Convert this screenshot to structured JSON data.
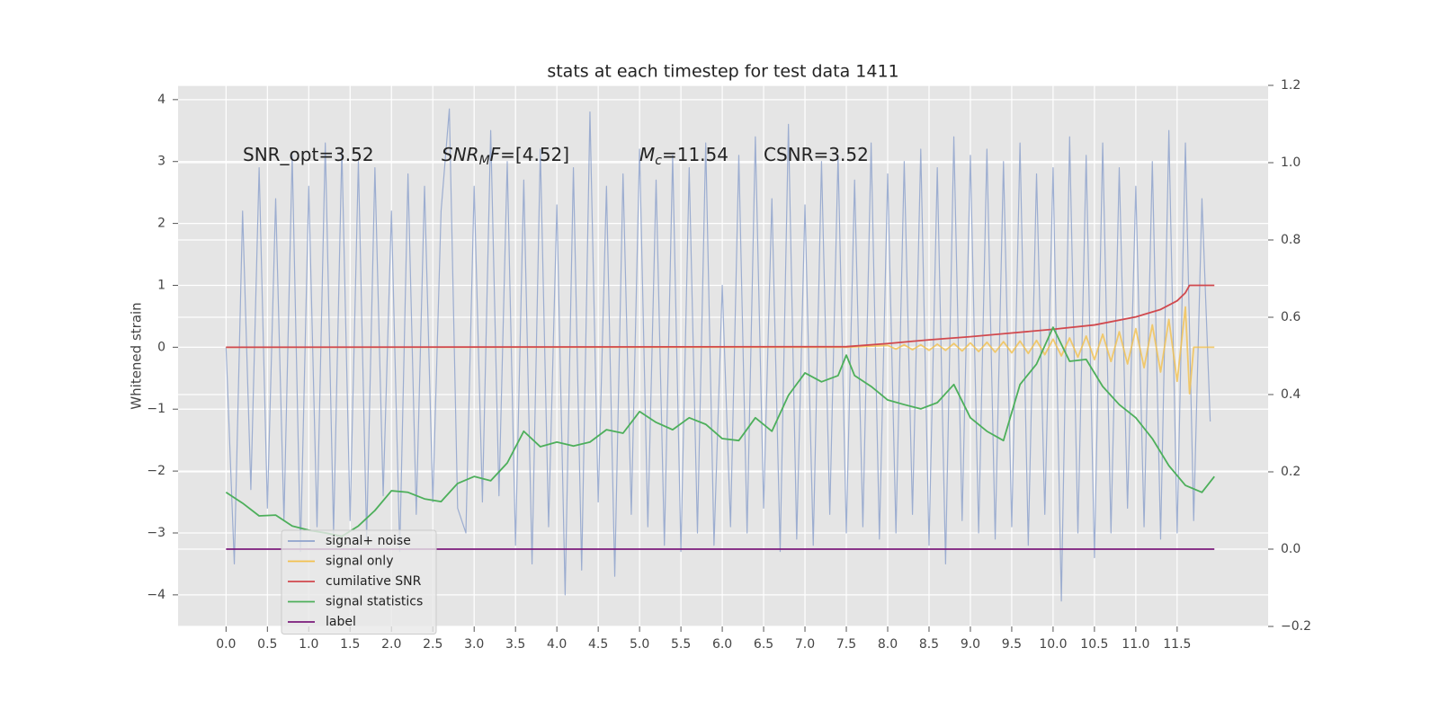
{
  "chart_data": {
    "type": "line",
    "title": "stats at each timestep for test data 1411",
    "ylabel": "Whitened strain",
    "grid": true,
    "legend": "lower left",
    "xlim": [
      -0.58,
      12.6
    ],
    "ylim": [
      -4.51,
      4.23
    ],
    "y2lim": [
      -0.2,
      1.2
    ],
    "xticks": [
      {
        "value": 0,
        "label": "0.0"
      },
      {
        "value": 0.5,
        "label": "0.5"
      },
      {
        "value": 1,
        "label": "1.0"
      },
      {
        "value": 1.5,
        "label": "1.5"
      },
      {
        "value": 2,
        "label": "2.0"
      },
      {
        "value": 2.5,
        "label": "2.5"
      },
      {
        "value": 3,
        "label": "3.0"
      },
      {
        "value": 3.5,
        "label": "3.5"
      },
      {
        "value": 4,
        "label": "4.0"
      },
      {
        "value": 4.5,
        "label": "4.5"
      },
      {
        "value": 5,
        "label": "5.0"
      },
      {
        "value": 5.5,
        "label": "5.5"
      },
      {
        "value": 6,
        "label": "6.0"
      },
      {
        "value": 6.5,
        "label": "6.5"
      },
      {
        "value": 7,
        "label": "7.0"
      },
      {
        "value": 7.5,
        "label": "7.5"
      },
      {
        "value": 8,
        "label": "8.0"
      },
      {
        "value": 8.5,
        "label": "8.5"
      },
      {
        "value": 9,
        "label": "9.0"
      },
      {
        "value": 9.5,
        "label": "9.5"
      },
      {
        "value": 10,
        "label": "10.0"
      },
      {
        "value": 10.5,
        "label": "10.5"
      },
      {
        "value": 11,
        "label": "11.0"
      },
      {
        "value": 11.5,
        "label": "11.5"
      }
    ],
    "yticks": [
      {
        "value": -4,
        "label": "−4"
      },
      {
        "value": -3,
        "label": "−3"
      },
      {
        "value": -2,
        "label": "−2"
      },
      {
        "value": -1,
        "label": "−1"
      },
      0,
      1,
      2,
      3,
      4
    ],
    "y2ticks": [
      {
        "value": -0.2,
        "label": "−0.2"
      },
      {
        "value": 0,
        "label": "0.0"
      },
      0.2,
      0.4,
      0.6,
      0.8,
      {
        "value": 1,
        "label": "1.0"
      },
      1.2
    ],
    "annotations": [
      [
        {
          "text": "SNR_opt=3.52"
        }
      ],
      [
        {
          "text": "SNR",
          "style": "italic"
        },
        {
          "text": "M",
          "style": "italic-sub"
        },
        {
          "text": "F",
          "style": "italic"
        },
        {
          "text": "=[4.52]"
        }
      ],
      [
        {
          "text": "M",
          "style": "italic"
        },
        {
          "text": "c",
          "style": "italic-sub"
        },
        {
          "text": "=11.54"
        }
      ],
      [
        {
          "text": "CSNR=3.52"
        }
      ]
    ],
    "series": [
      {
        "name": "signal+ noise",
        "color": "#8fa3cc",
        "axis": "y",
        "x": [
          0,
          0.1,
          0.2,
          0.3,
          0.4,
          0.5,
          0.6,
          0.7,
          0.8,
          0.9,
          1,
          1.1,
          1.2,
          1.3,
          1.4,
          1.5,
          1.6,
          1.7,
          1.8,
          1.9,
          2,
          2.1,
          2.2,
          2.3,
          2.4,
          2.5,
          2.6,
          2.7,
          2.8,
          2.9,
          3,
          3.1,
          3.2,
          3.3,
          3.4,
          3.5,
          3.6,
          3.7,
          3.8,
          3.9,
          4,
          4.1,
          4.2,
          4.3,
          4.4,
          4.5,
          4.6,
          4.7,
          4.8,
          4.9,
          5,
          5.1,
          5.2,
          5.3,
          5.4,
          5.5,
          5.6,
          5.7,
          5.8,
          5.9,
          6,
          6.1,
          6.2,
          6.3,
          6.4,
          6.5,
          6.6,
          6.7,
          6.8,
          6.9,
          7,
          7.1,
          7.2,
          7.3,
          7.4,
          7.5,
          7.6,
          7.7,
          7.8,
          7.9,
          8,
          8.1,
          8.2,
          8.3,
          8.4,
          8.5,
          8.6,
          8.7,
          8.8,
          8.9,
          9,
          9.1,
          9.2,
          9.3,
          9.4,
          9.5,
          9.6,
          9.7,
          9.8,
          9.9,
          10,
          10.1,
          10.2,
          10.3,
          10.4,
          10.5,
          10.6,
          10.7,
          10.8,
          10.9,
          11,
          11.1,
          11.2,
          11.3,
          11.4,
          11.5,
          11.6,
          11.7,
          11.8,
          11.9
        ],
        "values": [
          0,
          -3.5,
          2.2,
          -2.3,
          2.9,
          -2.6,
          2.4,
          -2.8,
          3.1,
          -3.3,
          2.6,
          -2.9,
          3.3,
          -3.0,
          3.2,
          -2.8,
          3.0,
          -3.1,
          2.9,
          -2.4,
          2.2,
          -3.3,
          2.8,
          -2.7,
          2.6,
          -2.5,
          2.2,
          3.85,
          -2.6,
          -3.0,
          2.6,
          -2.5,
          3.5,
          -2.4,
          3.0,
          -3.2,
          2.7,
          -3.5,
          3.2,
          -2.9,
          2.3,
          -4.0,
          2.9,
          -3.6,
          3.8,
          -2.5,
          2.6,
          -3.7,
          2.8,
          -2.7,
          3.2,
          -2.9,
          2.7,
          -3.2,
          3.1,
          -3.3,
          2.9,
          -3.0,
          3.3,
          -3.2,
          1.0,
          -2.9,
          3.1,
          -3.0,
          3.4,
          -2.6,
          2.4,
          -3.3,
          3.6,
          -3.1,
          2.3,
          -3.2,
          3.0,
          -2.7,
          3.1,
          -3.0,
          2.7,
          -2.9,
          3.3,
          -3.1,
          2.8,
          -3.0,
          3.0,
          -2.7,
          3.2,
          -3.2,
          2.9,
          -3.5,
          3.4,
          -2.8,
          3.1,
          -3.0,
          3.2,
          -3.1,
          3.0,
          -2.9,
          3.3,
          -3.2,
          2.8,
          -2.7,
          2.9,
          -4.1,
          3.4,
          -3.0,
          3.1,
          -3.4,
          3.3,
          -3.0,
          2.9,
          -2.6,
          2.6,
          -2.9,
          3.0,
          -3.1,
          3.5,
          -3.0,
          3.3,
          -2.8,
          2.4,
          -1.2
        ]
      },
      {
        "name": "signal only",
        "color": "#f2c14e",
        "axis": "y",
        "x": [
          0,
          7.5,
          8,
          8.1,
          8.2,
          8.3,
          8.4,
          8.5,
          8.6,
          8.7,
          8.8,
          8.9,
          9,
          9.1,
          9.2,
          9.3,
          9.4,
          9.5,
          9.6,
          9.7,
          9.8,
          9.9,
          10,
          10.1,
          10.2,
          10.3,
          10.4,
          10.5,
          10.6,
          10.7,
          10.8,
          10.9,
          11,
          11.1,
          11.2,
          11.3,
          11.4,
          11.5,
          11.6,
          11.65,
          11.7,
          11.95
        ],
        "values": [
          0,
          0,
          0.03,
          -0.03,
          0.04,
          -0.04,
          0.04,
          -0.05,
          0.05,
          -0.05,
          0.06,
          -0.06,
          0.07,
          -0.07,
          0.08,
          -0.08,
          0.09,
          -0.09,
          0.1,
          -0.1,
          0.11,
          -0.12,
          0.13,
          -0.14,
          0.15,
          -0.16,
          0.18,
          -0.2,
          0.21,
          -0.23,
          0.25,
          -0.27,
          0.3,
          -0.33,
          0.36,
          -0.4,
          0.45,
          -0.55,
          0.65,
          -0.75,
          0,
          0
        ]
      },
      {
        "name": "cumilative SNR",
        "color": "#d1494e",
        "axis": "y",
        "x": [
          0,
          7.5,
          8,
          8.5,
          9,
          9.5,
          10,
          10.5,
          11,
          11.3,
          11.5,
          11.6,
          11.65,
          11.95
        ],
        "values": [
          0,
          0.01,
          0.06,
          0.12,
          0.17,
          0.23,
          0.29,
          0.36,
          0.49,
          0.61,
          0.75,
          0.88,
          1.0,
          1.0
        ]
      },
      {
        "name": "signal statistics",
        "color": "#4daf5b",
        "axis": "y2",
        "x": [
          0,
          0.2,
          0.4,
          0.6,
          0.8,
          1,
          1.2,
          1.4,
          1.6,
          1.8,
          2,
          2.2,
          2.4,
          2.6,
          2.8,
          3,
          3.2,
          3.4,
          3.6,
          3.8,
          4,
          4.2,
          4.4,
          4.6,
          4.8,
          5,
          5.2,
          5.4,
          5.6,
          5.8,
          6,
          6.2,
          6.4,
          6.6,
          6.8,
          7,
          7.2,
          7.4,
          7.5,
          7.6,
          7.8,
          8,
          8.2,
          8.4,
          8.6,
          8.8,
          9,
          9.2,
          9.4,
          9.6,
          9.8,
          10,
          10.2,
          10.4,
          10.6,
          10.8,
          11,
          11.2,
          11.4,
          11.6,
          11.8,
          11.95
        ],
        "values": [
          0.147,
          0.119,
          0.086,
          0.088,
          0.06,
          0.049,
          0.042,
          0.033,
          0.06,
          0.1,
          0.151,
          0.147,
          0.13,
          0.123,
          0.17,
          0.188,
          0.177,
          0.223,
          0.305,
          0.265,
          0.277,
          0.267,
          0.277,
          0.309,
          0.3,
          0.356,
          0.328,
          0.309,
          0.34,
          0.323,
          0.286,
          0.281,
          0.34,
          0.305,
          0.398,
          0.456,
          0.433,
          0.449,
          0.502,
          0.449,
          0.421,
          0.386,
          0.374,
          0.363,
          0.379,
          0.426,
          0.34,
          0.305,
          0.281,
          0.426,
          0.479,
          0.574,
          0.486,
          0.491,
          0.421,
          0.374,
          0.34,
          0.286,
          0.216,
          0.165,
          0.147,
          0.188
        ]
      },
      {
        "name": "label",
        "color": "#7b1a7b",
        "axis": "y2",
        "x": [
          0,
          11.95
        ],
        "values": [
          0,
          0
        ]
      }
    ]
  }
}
